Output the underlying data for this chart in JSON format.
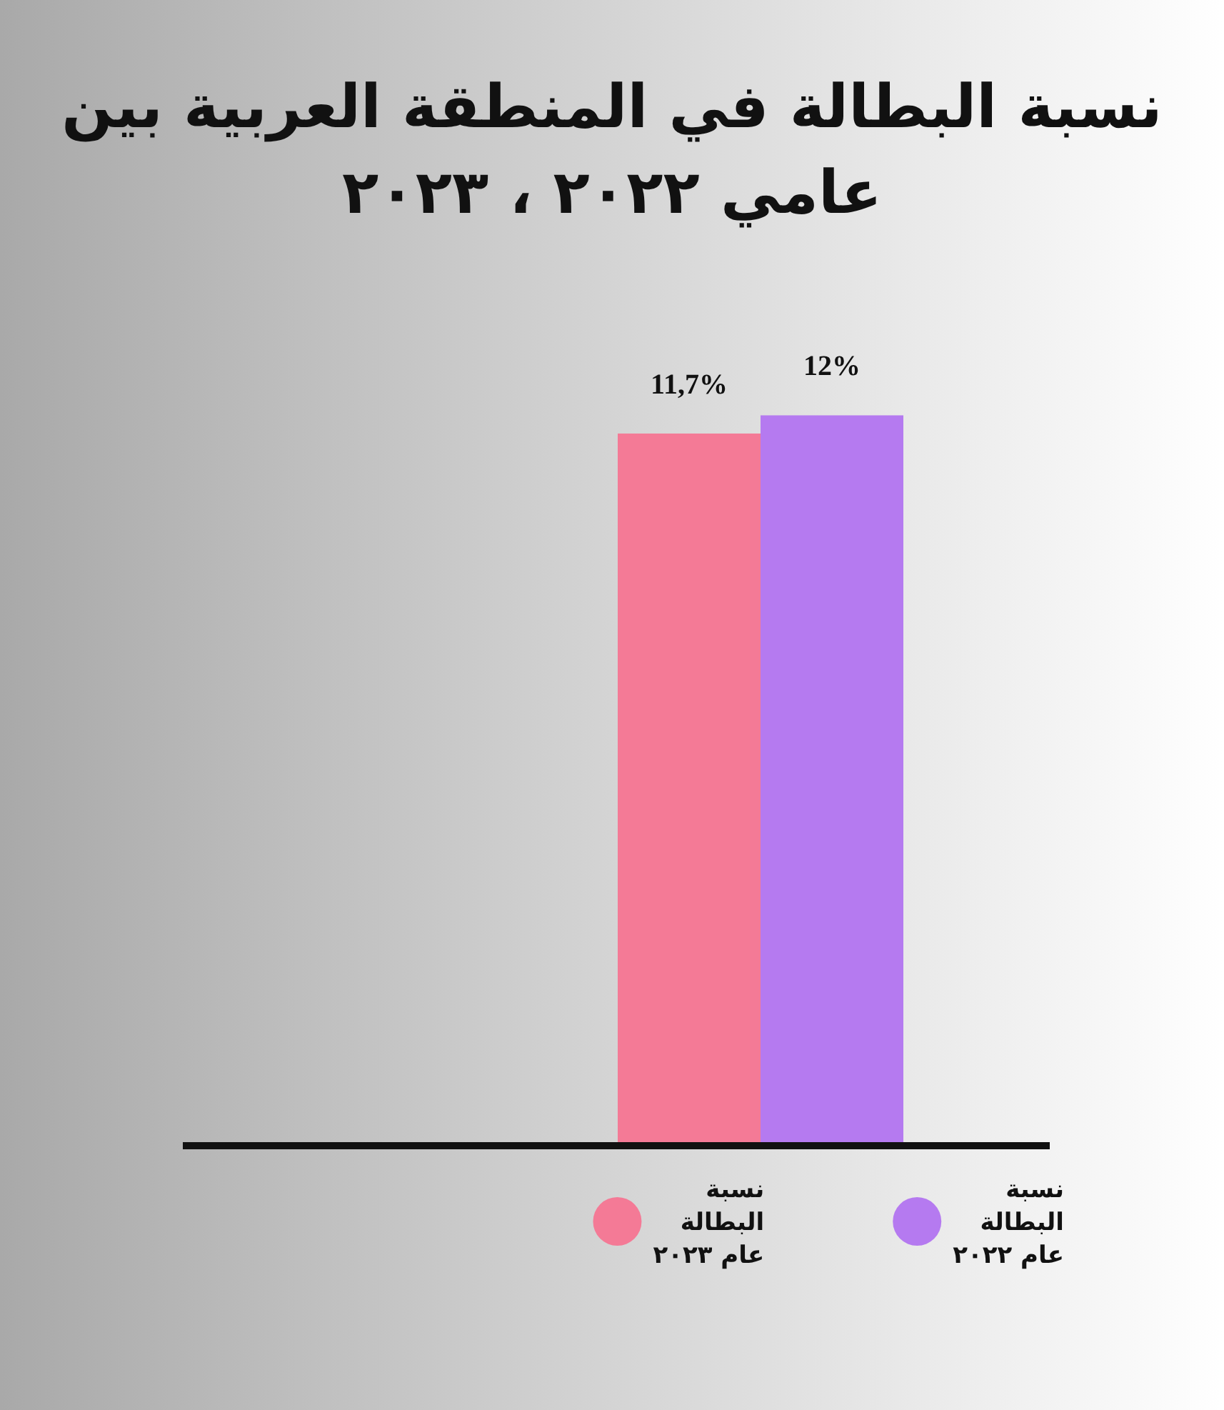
{
  "chart_data": {
    "type": "bar",
    "title": "نسبة البطالة في المنطقة العربية بين عامي ٢٠٢٢ ، ٢٠٢٣",
    "categories": [
      null
    ],
    "series": [
      {
        "name": "نسبة البطالة عام ٢٠٢٣",
        "color": "#f47a96",
        "values": [
          11.7
        ],
        "value_labels": [
          "11,7%"
        ]
      },
      {
        "name": "نسبة البطالة عام ٢٠٢٢",
        "color": "#b57af0",
        "values": [
          12
        ],
        "value_labels": [
          "12%"
        ]
      }
    ],
    "legend": "bottom"
  }
}
